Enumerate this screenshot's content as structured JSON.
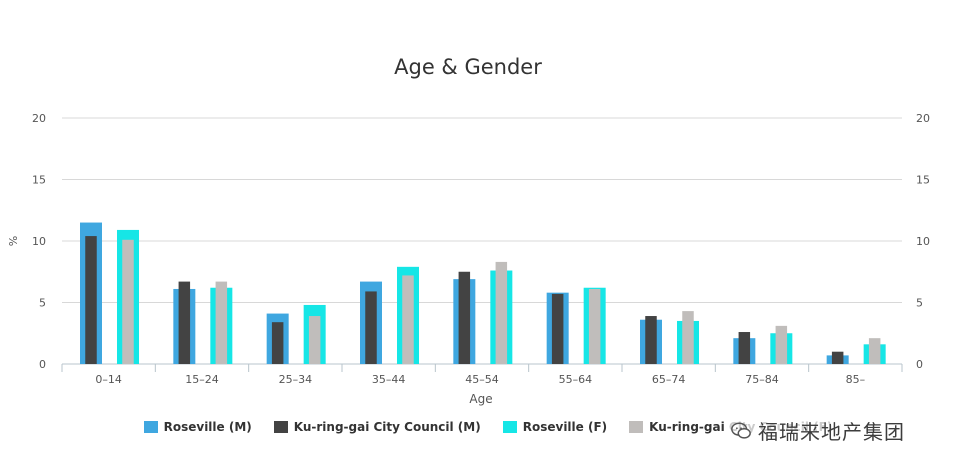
{
  "chart_data": {
    "type": "bar",
    "title": "Age & Gender",
    "xlabel": "Age",
    "ylabel": "%",
    "ylim": [
      0,
      20
    ],
    "yticks": [
      0,
      5,
      10,
      15,
      20
    ],
    "grid": true,
    "legend_position": "bottom",
    "categories": [
      "0–14",
      "15–24",
      "25–34",
      "35–44",
      "45–54",
      "55–64",
      "65–74",
      "75–84",
      "85–"
    ],
    "series": [
      {
        "name": "Roseville (M)",
        "color": "#3fa7e0",
        "values": [
          11.5,
          6.1,
          4.1,
          6.7,
          6.9,
          5.8,
          3.6,
          2.1,
          0.7
        ]
      },
      {
        "name": "Ku-ring-gai City Council (M)",
        "color": "#434343",
        "values": [
          10.4,
          6.7,
          3.4,
          5.9,
          7.5,
          5.7,
          3.9,
          2.6,
          1.0
        ]
      },
      {
        "name": "Roseville (F)",
        "color": "#16e6e6",
        "values": [
          10.9,
          6.2,
          4.8,
          7.9,
          7.6,
          6.2,
          3.5,
          2.5,
          1.6
        ]
      },
      {
        "name": "Ku-ring-gai City Council (F)",
        "color": "#c0bdbb",
        "values": [
          10.1,
          6.7,
          3.9,
          7.2,
          8.3,
          6.1,
          4.3,
          3.1,
          2.1
        ]
      }
    ]
  },
  "watermark": {
    "text": "福瑞来地产集团",
    "icon": "wechat-icon"
  }
}
